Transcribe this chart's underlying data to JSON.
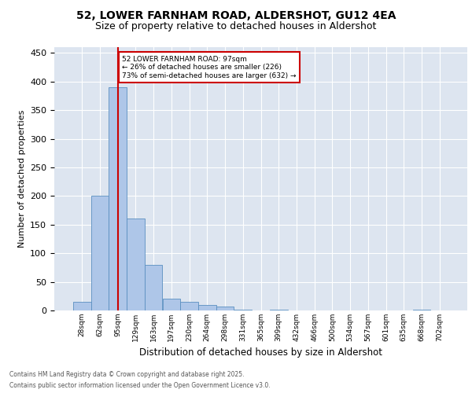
{
  "title_line1": "52, LOWER FARNHAM ROAD, ALDERSHOT, GU12 4EA",
  "title_line2": "Size of property relative to detached houses in Aldershot",
  "xlabel": "Distribution of detached houses by size in Aldershot",
  "ylabel": "Number of detached properties",
  "bin_labels": [
    "28sqm",
    "62sqm",
    "95sqm",
    "129sqm",
    "163sqm",
    "197sqm",
    "230sqm",
    "264sqm",
    "298sqm",
    "331sqm",
    "365sqm",
    "399sqm",
    "432sqm",
    "466sqm",
    "500sqm",
    "534sqm",
    "567sqm",
    "601sqm",
    "635sqm",
    "668sqm",
    "702sqm"
  ],
  "bar_values": [
    15,
    200,
    390,
    160,
    80,
    20,
    15,
    10,
    7,
    2,
    0,
    1,
    0,
    0,
    0,
    0,
    0,
    0,
    0,
    1,
    0
  ],
  "bar_color": "#aec6e8",
  "bar_edge_color": "#5a8fc0",
  "ylim": [
    0,
    460
  ],
  "yticks": [
    0,
    50,
    100,
    150,
    200,
    250,
    300,
    350,
    400,
    450
  ],
  "vline_bin_index": 2,
  "subject_label": "52 LOWER FARNHAM ROAD: 97sqm",
  "annotation_line2": "← 26% of detached houses are smaller (226)",
  "annotation_line3": "73% of semi-detached houses are larger (632) →",
  "vline_color": "#cc0000",
  "background_color": "#dde5f0",
  "footer_line1": "Contains HM Land Registry data © Crown copyright and database right 2025.",
  "footer_line2": "Contains public sector information licensed under the Open Government Licence v3.0."
}
